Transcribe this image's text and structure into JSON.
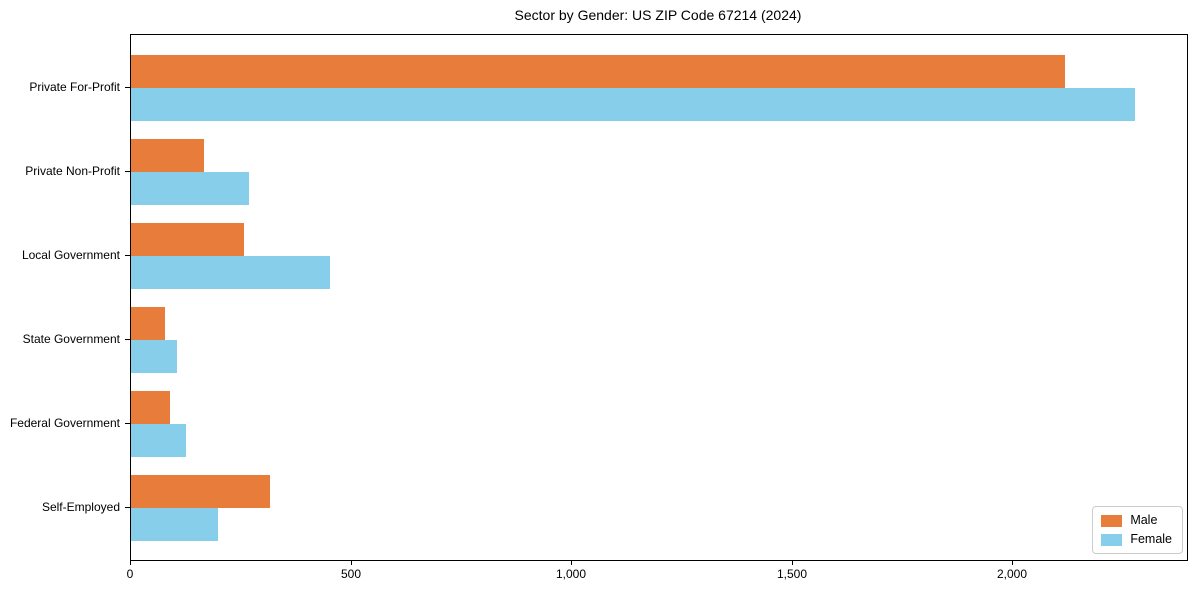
{
  "title": "Sector by Gender: US ZIP Code 67214 (2024)",
  "chart_data": {
    "type": "bar",
    "orientation": "horizontal",
    "title": "Sector by Gender: US ZIP Code 67214 (2024)",
    "categories": [
      "Private For-Profit",
      "Private Non-Profit",
      "Local Government",
      "State Government",
      "Federal Government",
      "Self-Employed"
    ],
    "series": [
      {
        "name": "Male",
        "color": "#E87D3B",
        "values": [
          2118,
          165,
          256,
          77,
          88,
          315
        ]
      },
      {
        "name": "Female",
        "color": "#87CEEB",
        "values": [
          2276,
          267,
          452,
          104,
          125,
          197
        ]
      }
    ],
    "xlabel": "",
    "ylabel": "",
    "xlim": [
      0,
      2394
    ],
    "xticks": [
      0,
      500,
      1000,
      1500,
      2000
    ],
    "xtick_labels": [
      "0",
      "500",
      "1,000",
      "1,500",
      "2,000"
    ],
    "grid": false,
    "legend": {
      "position": "lower right",
      "entries": [
        "Male",
        "Female"
      ]
    }
  }
}
